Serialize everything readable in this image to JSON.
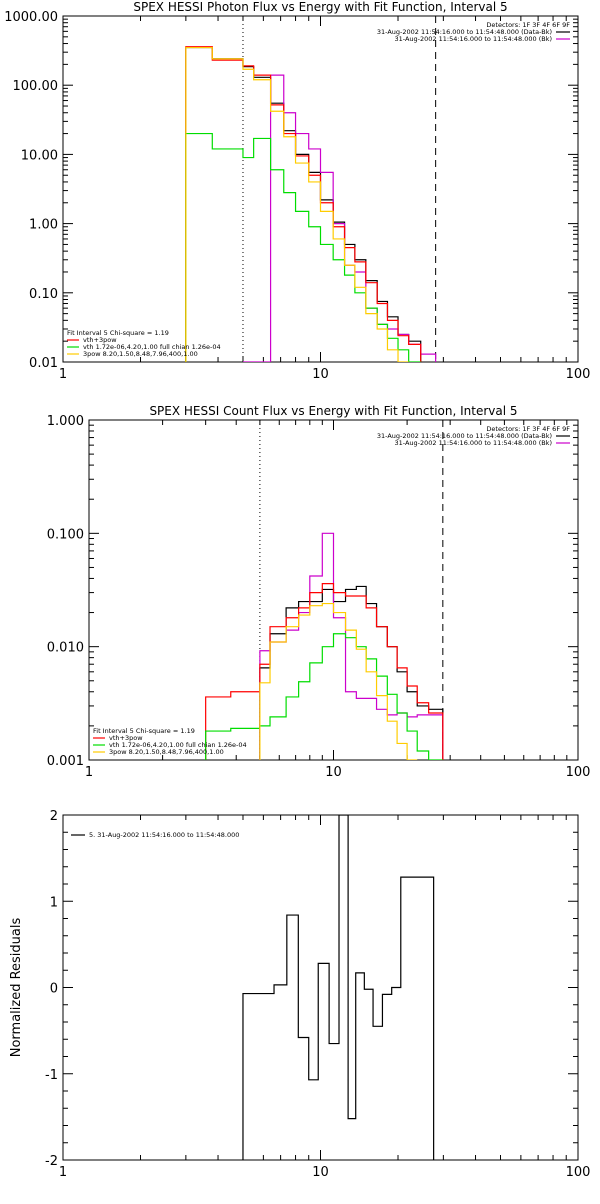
{
  "chart_data": [
    {
      "type": "line",
      "title": "SPEX HESSI Photon Flux vs Energy with Fit Function, Interval 5",
      "xlabel": "",
      "ylabel": "",
      "x_scale": "log",
      "y_scale": "log",
      "xlim": [
        1,
        100
      ],
      "ylim": [
        0.01,
        1000
      ],
      "x_ticks": [
        {
          "v": 1,
          "label": "1"
        },
        {
          "v": 10,
          "label": "10"
        },
        {
          "v": 100,
          "label": "100"
        }
      ],
      "y_ticks": [
        {
          "v": 1000,
          "label": "1000.00"
        },
        {
          "v": 100,
          "label": "100.00"
        },
        {
          "v": 10,
          "label": "10.00"
        },
        {
          "v": 1,
          "label": "1.00"
        },
        {
          "v": 0.1,
          "label": "0.10"
        },
        {
          "v": 0.01,
          "label": "0.01"
        }
      ],
      "vlines": [
        {
          "x": 5.0,
          "style": "dotted"
        },
        {
          "x": 28.0,
          "style": "dashed"
        }
      ],
      "legend_top_right": [
        {
          "text": "Detectors: 1F 3F 4F 6F 9F",
          "color": ""
        },
        {
          "text": "31-Aug-2002 11:54:16.000 to 11:54:48.000 (Data-Bk)",
          "color": "#000000"
        },
        {
          "text": "31-Aug-2002 11:54:16.000 to 11:54:48.000 (Bk)",
          "color": "#cc00cc"
        }
      ],
      "legend_bottom_left": [
        {
          "text": "Fit Interval 5   Chi-square = 1.19",
          "color": ""
        },
        {
          "text": "vth+3pow",
          "color": "#ff0000"
        },
        {
          "text": "vth 1.72e-06,4.20,1.00  full chian 1.26e-04",
          "color": "#00dd00"
        },
        {
          "text": "3pow 8.20,1.50,8.48,7.96,400,1.00",
          "color": "#ffcc00"
        }
      ],
      "bin_edges": [
        3.0,
        3.8,
        5.0,
        5.5,
        6.4,
        7.2,
        8.0,
        9.0,
        10.0,
        11.2,
        12.4,
        13.6,
        15.0,
        16.6,
        18.2,
        20.0,
        22.0,
        24.5,
        28.0
      ],
      "series": [
        {
          "color": "#000000",
          "values": [
            350,
            240,
            185,
            130,
            55,
            22,
            10,
            5.5,
            2.2,
            1.05,
            0.5,
            0.3,
            0.15,
            0.075,
            0.045,
            0.025,
            0.02,
            null
          ]
        },
        {
          "color": "#cc00cc",
          "values": [
            null,
            null,
            0.01,
            0.01,
            140,
            40,
            20,
            12,
            5.5,
            1.0,
            0.25,
            0.2,
            0.06,
            0.035,
            0.03,
            0.025,
            0.018,
            0.013
          ]
        },
        {
          "color": "#ff0000",
          "values": [
            360,
            230,
            190,
            140,
            52,
            20,
            9.5,
            5,
            2.0,
            0.9,
            0.45,
            0.28,
            0.14,
            0.07,
            0.04,
            0.024,
            0.018,
            null
          ]
        },
        {
          "color": "#00dd00",
          "values": [
            20,
            12,
            9,
            17,
            6,
            2.8,
            1.5,
            0.9,
            0.5,
            0.3,
            0.18,
            0.1,
            0.06,
            0.035,
            0.022,
            0.015,
            0.01,
            null
          ]
        },
        {
          "color": "#ffcc00",
          "values": [
            350,
            240,
            170,
            120,
            42,
            18,
            7.5,
            4,
            1.5,
            0.6,
            0.25,
            0.12,
            0.05,
            0.03,
            0.015,
            0.01,
            null,
            null
          ]
        }
      ]
    },
    {
      "type": "line",
      "title": "SPEX HESSI Count Flux vs Energy with Fit Function, Interval 5",
      "xlabel": "",
      "ylabel": "",
      "x_scale": "log",
      "y_scale": "log",
      "xlim": [
        1,
        100
      ],
      "ylim": [
        0.001,
        1.0
      ],
      "x_ticks": [
        {
          "v": 1,
          "label": "1"
        },
        {
          "v": 10,
          "label": "10"
        },
        {
          "v": 100,
          "label": "100"
        }
      ],
      "y_ticks": [
        {
          "v": 1,
          "label": "1.000"
        },
        {
          "v": 0.1,
          "label": "0.100"
        },
        {
          "v": 0.01,
          "label": "0.010"
        },
        {
          "v": 0.001,
          "label": "0.001"
        }
      ],
      "vlines": [
        {
          "x": 5.0,
          "style": "dotted"
        },
        {
          "x": 28.0,
          "style": "dashed"
        }
      ],
      "legend_top_right": [
        {
          "text": "Detectors: 1F 3F 4F 6F 9F",
          "color": ""
        },
        {
          "text": "31-Aug-2002 11:54:16.000 to 11:54:48.000 (Data-Bk)",
          "color": "#000000"
        },
        {
          "text": "31-Aug-2002 11:54:16.000 to 11:54:48.000 (Bk)",
          "color": "#cc00cc"
        }
      ],
      "legend_bottom_left": [
        {
          "text": "Fit Interval 5   Chi-square = 1.19",
          "color": ""
        },
        {
          "text": "vth+3pow",
          "color": "#ff0000"
        },
        {
          "text": "vth 1.72e-06,4.20,1.00  full chian 1.26e-04",
          "color": "#00dd00"
        },
        {
          "text": "3pow 8.20,1.50,8.48,7.96,400,1.00",
          "color": "#ffcc00"
        }
      ],
      "bin_edges": [
        3.0,
        3.8,
        5.0,
        5.5,
        6.4,
        7.2,
        8.0,
        9.0,
        10.0,
        11.2,
        12.4,
        13.6,
        15.0,
        16.6,
        18.2,
        20.0,
        22.0,
        24.5,
        28.0
      ],
      "series": [
        {
          "color": "#000000",
          "values": [
            null,
            null,
            0.0065,
            0.013,
            0.022,
            0.025,
            0.025,
            0.032,
            0.025,
            0.032,
            0.034,
            0.024,
            0.015,
            0.01,
            0.006,
            0.004,
            0.003,
            0.0028
          ]
        },
        {
          "color": "#cc00cc",
          "values": [
            null,
            null,
            0.0092,
            0.011,
            0.014,
            0.02,
            0.042,
            0.1,
            0.018,
            0.004,
            0.0035,
            0.0035,
            0.0028,
            0.0025,
            0.0026,
            0.0024,
            0.0025,
            0.0025
          ]
        },
        {
          "color": "#ff0000",
          "values": [
            0.0036,
            0.004,
            0.007,
            0.015,
            0.018,
            0.022,
            0.03,
            0.036,
            0.03,
            0.028,
            0.028,
            0.022,
            0.015,
            0.01,
            0.0065,
            0.0045,
            0.0032,
            0.0026
          ]
        },
        {
          "color": "#00dd00",
          "values": [
            0.0018,
            0.0019,
            0.002,
            0.0024,
            0.0036,
            0.0049,
            0.0072,
            0.01,
            0.013,
            0.012,
            0.01,
            0.0078,
            0.0055,
            0.0038,
            0.0026,
            0.0018,
            0.0012,
            0.001
          ]
        },
        {
          "color": "#ffcc00",
          "values": [
            null,
            null,
            0.0048,
            0.011,
            0.015,
            0.019,
            0.023,
            0.024,
            0.02,
            0.014,
            0.0095,
            0.006,
            0.0037,
            0.0022,
            0.0014,
            0.001,
            null,
            null
          ]
        }
      ]
    },
    {
      "type": "line",
      "title": "",
      "xlabel": "",
      "ylabel": "Normalized Residuals",
      "x_scale": "log",
      "y_scale": "linear",
      "xlim": [
        1,
        100
      ],
      "ylim": [
        -2,
        2
      ],
      "x_ticks": [
        {
          "v": 1,
          "label": "1"
        },
        {
          "v": 10,
          "label": "10"
        },
        {
          "v": 100,
          "label": "100"
        }
      ],
      "y_ticks": [
        {
          "v": 2,
          "label": "2"
        },
        {
          "v": 1,
          "label": "1"
        },
        {
          "v": 0,
          "label": "0"
        },
        {
          "v": -1,
          "label": "-1"
        },
        {
          "v": -2,
          "label": "-2"
        }
      ],
      "vlines": [],
      "legend_top_right": [],
      "legend_top_left": [
        {
          "text": "5. 31-Aug-2002 11:54:16.000 to 11:54:48.000",
          "color": "#000000"
        }
      ],
      "legend_bottom_left": [],
      "bin_edges": [
        5.0,
        5.8,
        6.6,
        7.4,
        8.2,
        9.0,
        9.8,
        10.8,
        11.8,
        12.8,
        13.7,
        14.8,
        16.0,
        17.4,
        18.9,
        20.5,
        22.5,
        24.8,
        27.5
      ],
      "series": [
        {
          "color": "#000000",
          "values": [
            -0.07,
            -0.07,
            0.03,
            0.84,
            -0.58,
            -1.07,
            0.28,
            -0.65,
            2.0,
            -1.52,
            0.17,
            -0.02,
            -0.45,
            -0.08,
            0.0,
            1.28,
            1.28,
            1.28
          ]
        }
      ]
    }
  ]
}
